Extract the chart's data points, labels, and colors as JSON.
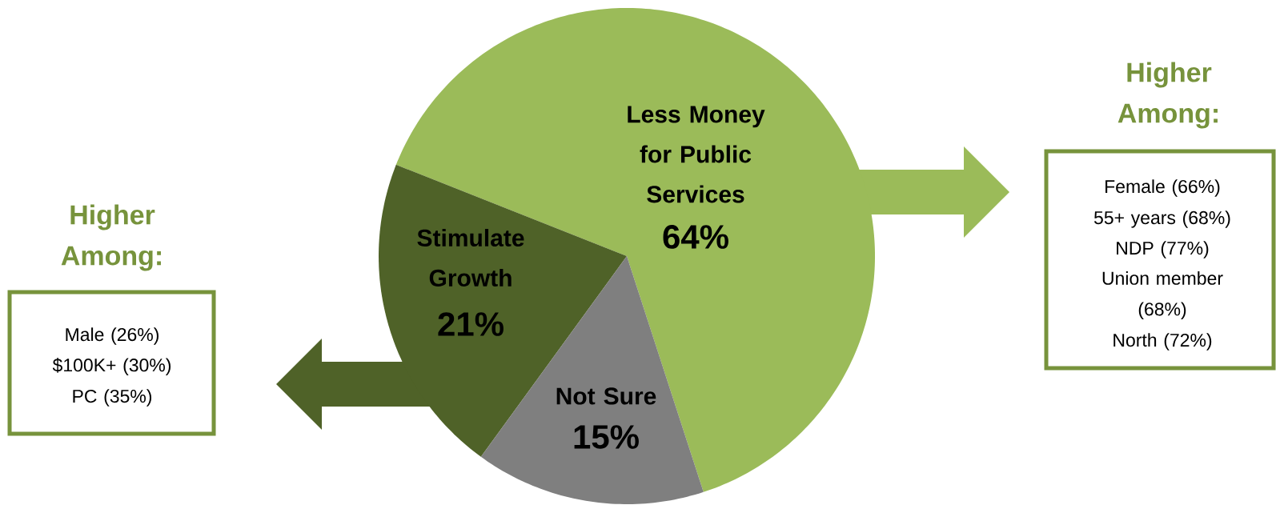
{
  "chart_data": {
    "type": "pie",
    "categories": [
      "Less Money for Public Services",
      "Stimulate Growth",
      "Not Sure"
    ],
    "values": [
      64,
      21,
      15
    ],
    "colors": [
      "#9bbb59",
      "#4f6228",
      "#7f7f7f"
    ],
    "value_labels": [
      "64%",
      "21%",
      "15%"
    ],
    "annotations": [
      "Higher Among:",
      "Female (66%)",
      "55+ years (68%)",
      "NDP (77%)",
      "Union member (68%)",
      "North (72%)",
      "Higher Among:",
      "Male (26%)",
      "$100K+ (30%)",
      "PC (35%)"
    ]
  }
}
